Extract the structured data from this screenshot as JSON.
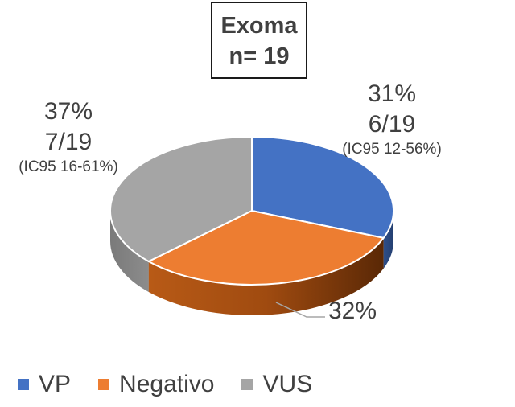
{
  "chart_data": {
    "type": "pie",
    "style": "3d",
    "title_lines": [
      "Exoma",
      "n= 19"
    ],
    "categories": [
      "VP",
      "Negativo",
      "VUS"
    ],
    "values": [
      31,
      32,
      37
    ],
    "colors": [
      "#4472C4",
      "#ED7D31",
      "#A5A5A5"
    ],
    "labels": {
      "vp": {
        "pct": "31%",
        "count": "6/19",
        "ci": "(IC95 12-56%)"
      },
      "neg": {
        "pct": "32%"
      },
      "vus": {
        "pct": "37%",
        "count": "7/19",
        "ci": "(IC95 16-61%)"
      }
    },
    "legend_position": "bottom-left"
  }
}
